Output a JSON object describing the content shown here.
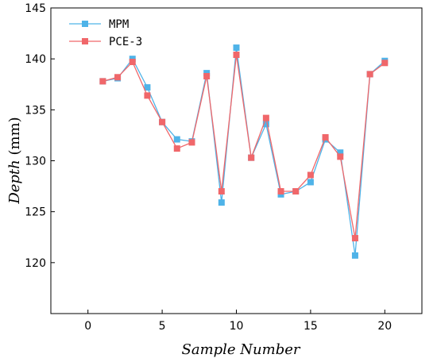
{
  "chart_data": {
    "type": "line",
    "title": "",
    "xlabel": "Sample Number",
    "ylabel": {
      "main": "Depth",
      "unit": " (mm)"
    },
    "xlim": [
      -2.5,
      22.5
    ],
    "ylim": [
      115,
      145
    ],
    "xticks": [
      0,
      5,
      10,
      15,
      20
    ],
    "yticks": [
      120,
      125,
      130,
      135,
      140,
      145
    ],
    "grid": false,
    "legend": "top-left",
    "x": [
      1,
      2,
      3,
      4,
      5,
      6,
      7,
      8,
      9,
      10,
      11,
      12,
      13,
      14,
      15,
      16,
      17,
      18,
      19,
      20
    ],
    "series": [
      {
        "name": "MPM",
        "color": "#4FB3E8",
        "marker": "square",
        "values": [
          137.8,
          138.1,
          140.0,
          137.2,
          133.8,
          132.1,
          131.9,
          138.6,
          125.9,
          141.1,
          130.3,
          133.6,
          126.7,
          127.0,
          127.9,
          132.1,
          130.8,
          120.7,
          138.5,
          139.8
        ]
      },
      {
        "name": "PCE-3",
        "color": "#F0676A",
        "marker": "square",
        "values": [
          137.8,
          138.2,
          139.7,
          136.4,
          133.8,
          131.2,
          131.8,
          138.3,
          127.0,
          140.4,
          130.3,
          134.2,
          127.0,
          127.0,
          128.6,
          132.3,
          130.4,
          122.4,
          138.5,
          139.6
        ]
      }
    ]
  }
}
